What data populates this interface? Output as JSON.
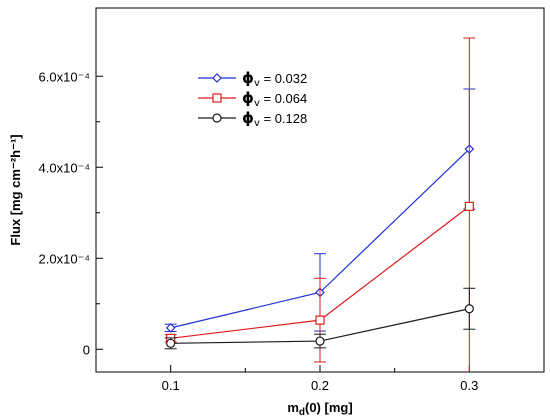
{
  "chart_data": {
    "type": "line",
    "xlabel": "md(0) [mg]",
    "xlabel_parts": {
      "main": "m",
      "sub": "d",
      "rest": "(0) [mg]"
    },
    "ylabel": "Flux [mg cm⁻²h⁻¹]",
    "x_ticks": [
      0.1,
      0.2,
      0.3
    ],
    "x_tick_labels": [
      "0.1",
      "0.2",
      "0.3"
    ],
    "y_ticks": [
      0,
      0.0002,
      0.0004,
      0.0006
    ],
    "y_tick_labels": [
      "0",
      "2.0x10⁻⁴",
      "4.0x10⁻⁴",
      "6.0x10⁻⁴"
    ],
    "xlim": [
      0.05,
      0.35
    ],
    "ylim": [
      -5e-05,
      0.00075
    ],
    "grid": false,
    "legend_position": "top-left",
    "series": [
      {
        "name": "φv = 0.032",
        "legend_symbol": "ϕ",
        "legend_sub": "v",
        "legend_value": " = 0.032",
        "color": "#1f2fd6",
        "marker": "diamond",
        "x": [
          0.1,
          0.2,
          0.3
        ],
        "y": [
          4.7e-05,
          0.000125,
          0.00044
        ],
        "yerr": [
          8e-06,
          8.5e-05,
          0.000132
        ]
      },
      {
        "name": "φv = 0.064",
        "legend_symbol": "ϕ",
        "legend_sub": "v",
        "legend_value": " = 0.064",
        "color": "#e01a1a",
        "marker": "square",
        "x": [
          0.1,
          0.2,
          0.3
        ],
        "y": [
          2.4e-05,
          6.4e-05,
          0.000314
        ],
        "yerr": [
          8e-06,
          9.2e-05,
          0.00037
        ]
      },
      {
        "name": "φv = 0.128",
        "legend_symbol": "ϕ",
        "legend_sub": "v",
        "legend_value": " = 0.128",
        "color": "#1a1a1a",
        "marker": "circle",
        "x": [
          0.1,
          0.2,
          0.3
        ],
        "y": [
          1.3e-05,
          1.8e-05,
          8.9e-05
        ],
        "yerr": [
          1.2e-05,
          1.5e-05,
          4.5e-05
        ]
      }
    ]
  }
}
